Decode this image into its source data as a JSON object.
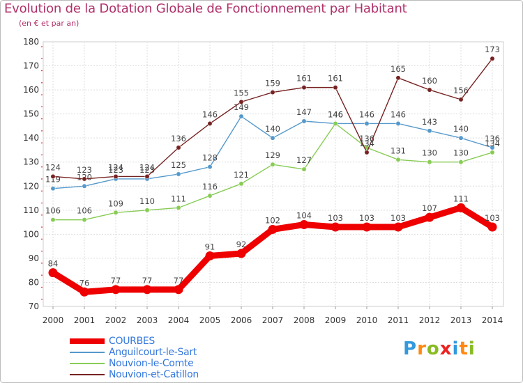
{
  "chart_data": {
    "type": "line",
    "title": "Evolution de la Dotation Globale de Fonctionnement par Habitant",
    "subtitle": "(en € et par an)",
    "xlabel": "",
    "ylabel": "",
    "categories": [
      "2000",
      "2001",
      "2002",
      "2003",
      "2004",
      "2005",
      "2006",
      "2007",
      "2008",
      "2009",
      "2010",
      "2011",
      "2012",
      "2013",
      "2014"
    ],
    "ylim": [
      70,
      180
    ],
    "yticks": [
      "70",
      "80",
      "90",
      "100",
      "110",
      "120",
      "130",
      "140",
      "150",
      "160",
      "170",
      "180"
    ],
    "grid": true,
    "legend_position": "bottom-left",
    "series": [
      {
        "name": "COURBES",
        "color": "#ee0000",
        "emphasis": true,
        "values": [
          84,
          76,
          77,
          77,
          77,
          91,
          92,
          102,
          104,
          103,
          103,
          103,
          107,
          111,
          103
        ],
        "labels": [
          "84",
          "76",
          "77",
          "77",
          "77",
          "91",
          "92",
          "102",
          "104",
          "103",
          "103",
          "103",
          "107",
          "111",
          "103"
        ]
      },
      {
        "name": "Anguilcourt-le-Sart",
        "color": "#5599cc",
        "emphasis": false,
        "values": [
          119,
          120,
          123,
          123,
          125,
          128,
          149,
          140,
          147,
          146,
          146,
          146,
          143,
          140,
          136
        ],
        "labels": [
          "119",
          "120",
          "123",
          "123",
          "125",
          "128",
          "149",
          "140",
          "147",
          "146",
          "146",
          "146",
          "143",
          "140",
          "136"
        ]
      },
      {
        "name": "Nouvion-le-Comte",
        "color": "#88cc55",
        "emphasis": false,
        "values": [
          106,
          106,
          109,
          110,
          111,
          116,
          121,
          129,
          127,
          146,
          136,
          131,
          130,
          130,
          134
        ],
        "labels": [
          "106",
          "106",
          "109",
          "110",
          "111",
          "116",
          "121",
          "129",
          "127",
          "146",
          "136",
          "131",
          "130",
          "130",
          "134"
        ]
      },
      {
        "name": "Nouvion-et-Catillon",
        "color": "#772222",
        "emphasis": false,
        "values": [
          124,
          123,
          124,
          124,
          136,
          146,
          155,
          159,
          161,
          161,
          134,
          165,
          160,
          156,
          173
        ],
        "labels": [
          "124",
          "123",
          "124",
          "124",
          "136",
          "146",
          "155",
          "159",
          "161",
          "161",
          "134",
          "165",
          "160",
          "156",
          "173"
        ]
      }
    ]
  },
  "logo": {
    "letters": [
      "P",
      "r",
      "o",
      "x",
      "i",
      "t",
      "i"
    ],
    "colors": [
      "#3399dd",
      "#ff8811",
      "#88bb22",
      "#ee2222",
      "#3399dd",
      "#ff8811",
      "#88bb22"
    ]
  }
}
